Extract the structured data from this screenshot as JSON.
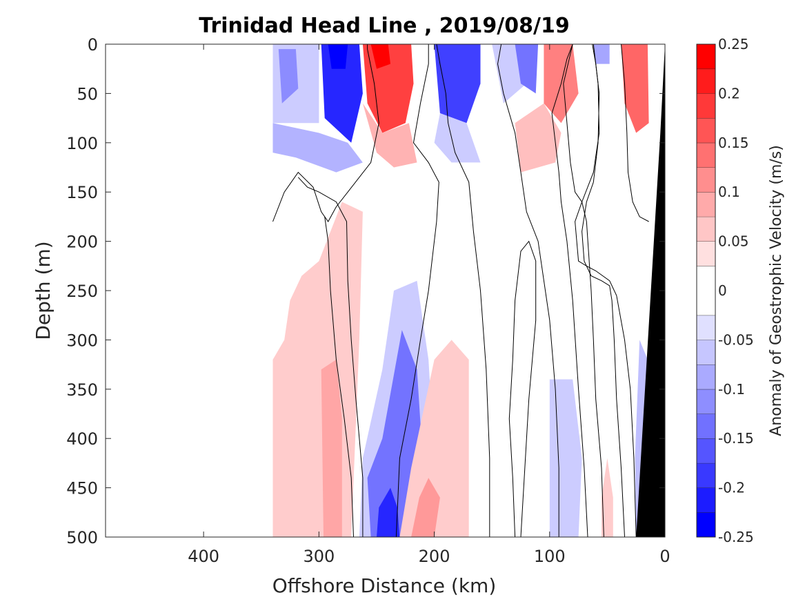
{
  "chart_data": {
    "type": "heatmap",
    "title": "Trinidad Head Line , 2019/08/19",
    "xlabel": "Offshore Distance (km)",
    "ylabel": "Depth (m)",
    "colorbar_label": "Anomaly of Geostrophic Velocity (m/s)",
    "xlim": [
      485,
      0
    ],
    "ylim": [
      0,
      500
    ],
    "x_reversed": true,
    "y_reversed": true,
    "x_ticks": [
      400,
      300,
      200,
      100,
      0
    ],
    "x_tick_labels": [
      "400",
      "300",
      "200",
      "100",
      "0"
    ],
    "y_ticks": [
      0,
      50,
      100,
      150,
      200,
      250,
      300,
      350,
      400,
      450,
      500
    ],
    "y_tick_labels": [
      "0",
      "50",
      "100",
      "150",
      "200",
      "250",
      "300",
      "350",
      "400",
      "450",
      "500"
    ],
    "colorbar_ticks": [
      0.25,
      0.2,
      0.15,
      0.1,
      0.05,
      0,
      -0.05,
      -0.1,
      -0.15,
      -0.2,
      -0.25
    ],
    "colorbar_tick_labels": [
      "0.25",
      "0.2",
      "0.15",
      "0.1",
      "0.05",
      "0",
      "-0.05",
      "-0.1",
      "-0.15",
      "-0.2",
      "-0.25"
    ],
    "colorbar_levels": [
      -0.25,
      -0.225,
      -0.2,
      -0.175,
      -0.15,
      -0.125,
      -0.1,
      -0.075,
      -0.05,
      -0.025,
      0.025,
      0.05,
      0.075,
      0.1,
      0.125,
      0.15,
      0.175,
      0.2,
      0.225,
      0.25
    ],
    "colormap": {
      "negative": "#0000ff",
      "zero": "#ffffff",
      "positive": "#ff0000"
    },
    "bathymetry_color": "#000000",
    "features": [
      {
        "kind": "neg",
        "level": 0.2,
        "poly": [
          [
            340,
            0
          ],
          [
            318,
            0
          ],
          [
            300,
            0
          ],
          [
            300,
            80
          ],
          [
            340,
            80
          ]
        ]
      },
      {
        "kind": "neg",
        "level": 0.45,
        "poly": [
          [
            335,
            5
          ],
          [
            320,
            5
          ],
          [
            318,
            45
          ],
          [
            332,
            60
          ]
        ]
      },
      {
        "kind": "neg",
        "level": 0.85,
        "poly": [
          [
            298,
            0
          ],
          [
            265,
            0
          ],
          [
            262,
            50
          ],
          [
            272,
            100
          ],
          [
            295,
            75
          ]
        ]
      },
      {
        "kind": "neg",
        "level": 0.3,
        "poly": [
          [
            340,
            80
          ],
          [
            300,
            90
          ],
          [
            275,
            100
          ],
          [
            262,
            120
          ],
          [
            285,
            130
          ],
          [
            320,
            115
          ],
          [
            340,
            110
          ]
        ]
      },
      {
        "kind": "neg",
        "level": 1.0,
        "poly": [
          [
            292,
            0
          ],
          [
            275,
            0
          ],
          [
            277,
            25
          ],
          [
            289,
            25
          ]
        ]
      },
      {
        "kind": "pos",
        "level": 0.75,
        "poly": [
          [
            262,
            0
          ],
          [
            220,
            0
          ],
          [
            218,
            40
          ],
          [
            225,
            80
          ],
          [
            245,
            90
          ],
          [
            258,
            60
          ]
        ]
      },
      {
        "kind": "pos",
        "level": 0.3,
        "poly": [
          [
            262,
            60
          ],
          [
            250,
            110
          ],
          [
            235,
            125
          ],
          [
            215,
            120
          ],
          [
            222,
            80
          ],
          [
            245,
            90
          ]
        ]
      },
      {
        "kind": "pos",
        "level": 1.0,
        "poly": [
          [
            255,
            0
          ],
          [
            240,
            0
          ],
          [
            238,
            20
          ],
          [
            250,
            25
          ]
        ]
      },
      {
        "kind": "neg",
        "level": 0.75,
        "poly": [
          [
            200,
            0
          ],
          [
            160,
            0
          ],
          [
            160,
            40
          ],
          [
            172,
            80
          ],
          [
            195,
            70
          ]
        ]
      },
      {
        "kind": "neg",
        "level": 0.2,
        "poly": [
          [
            195,
            70
          ],
          [
            172,
            80
          ],
          [
            160,
            120
          ],
          [
            185,
            120
          ],
          [
            200,
            100
          ]
        ]
      },
      {
        "kind": "neg",
        "level": 0.2,
        "poly": [
          [
            150,
            0
          ],
          [
            120,
            0
          ],
          [
            120,
            40
          ],
          [
            140,
            60
          ]
        ]
      },
      {
        "kind": "neg",
        "level": 0.55,
        "poly": [
          [
            130,
            0
          ],
          [
            110,
            0
          ],
          [
            112,
            50
          ],
          [
            125,
            40
          ]
        ]
      },
      {
        "kind": "pos",
        "level": 0.5,
        "poly": [
          [
            105,
            0
          ],
          [
            80,
            0
          ],
          [
            75,
            50
          ],
          [
            90,
            80
          ],
          [
            105,
            60
          ]
        ]
      },
      {
        "kind": "pos",
        "level": 0.25,
        "poly": [
          [
            130,
            80
          ],
          [
            105,
            60
          ],
          [
            90,
            90
          ],
          [
            95,
            120
          ],
          [
            125,
            130
          ]
        ]
      },
      {
        "kind": "neg",
        "level": 0.35,
        "poly": [
          [
            62,
            0
          ],
          [
            48,
            0
          ],
          [
            48,
            20
          ],
          [
            60,
            20
          ]
        ]
      },
      {
        "kind": "pos",
        "level": 0.6,
        "poly": [
          [
            38,
            0
          ],
          [
            15,
            0
          ],
          [
            14,
            80
          ],
          [
            25,
            90
          ],
          [
            35,
            60
          ]
        ]
      },
      {
        "kind": "pos",
        "level": 0.2,
        "poly": [
          [
            340,
            320
          ],
          [
            330,
            300
          ],
          [
            325,
            260
          ],
          [
            315,
            235
          ],
          [
            300,
            220
          ],
          [
            280,
            160
          ],
          [
            262,
            170
          ],
          [
            265,
            300
          ],
          [
            272,
            500
          ],
          [
            340,
            500
          ]
        ]
      },
      {
        "kind": "pos",
        "level": 0.35,
        "poly": [
          [
            298,
            330
          ],
          [
            285,
            320
          ],
          [
            280,
            380
          ],
          [
            280,
            500
          ],
          [
            296,
            500
          ]
        ]
      },
      {
        "kind": "neg",
        "level": 0.2,
        "poly": [
          [
            235,
            250
          ],
          [
            215,
            240
          ],
          [
            205,
            320
          ],
          [
            200,
            420
          ],
          [
            195,
            500
          ],
          [
            265,
            500
          ],
          [
            262,
            420
          ],
          [
            245,
            330
          ]
        ]
      },
      {
        "kind": "neg",
        "level": 0.55,
        "poly": [
          [
            228,
            290
          ],
          [
            215,
            330
          ],
          [
            210,
            420
          ],
          [
            215,
            500
          ],
          [
            255,
            500
          ],
          [
            258,
            440
          ],
          [
            245,
            400
          ]
        ]
      },
      {
        "kind": "neg",
        "level": 0.85,
        "poly": [
          [
            238,
            450
          ],
          [
            232,
            470
          ],
          [
            230,
            500
          ],
          [
            250,
            500
          ],
          [
            248,
            470
          ]
        ]
      },
      {
        "kind": "pos",
        "level": 0.2,
        "poly": [
          [
            200,
            320
          ],
          [
            185,
            300
          ],
          [
            170,
            320
          ],
          [
            170,
            500
          ],
          [
            230,
            500
          ],
          [
            220,
            430
          ]
        ]
      },
      {
        "kind": "pos",
        "level": 0.4,
        "poly": [
          [
            213,
            460
          ],
          [
            205,
            440
          ],
          [
            195,
            460
          ],
          [
            200,
            500
          ],
          [
            220,
            500
          ]
        ]
      },
      {
        "kind": "neg",
        "level": 0.2,
        "poly": [
          [
            100,
            340
          ],
          [
            80,
            340
          ],
          [
            72,
            420
          ],
          [
            75,
            500
          ],
          [
            100,
            500
          ]
        ]
      },
      {
        "kind": "pos",
        "level": 0.2,
        "poly": [
          [
            50,
            420
          ],
          [
            45,
            460
          ],
          [
            45,
            500
          ],
          [
            55,
            500
          ],
          [
            55,
            460
          ]
        ]
      },
      {
        "kind": "neg",
        "level": 0.25,
        "poly": [
          [
            22,
            300
          ],
          [
            15,
            320
          ],
          [
            17,
            420
          ],
          [
            20,
            500
          ],
          [
            25,
            500
          ],
          [
            26,
            420
          ]
        ]
      }
    ],
    "zero_contours": [
      [
        [
          340,
          180
        ],
        [
          330,
          150
        ],
        [
          318,
          130
        ],
        [
          305,
          145
        ],
        [
          298,
          170
        ],
        [
          292,
          180
        ],
        [
          285,
          165
        ],
        [
          275,
          150
        ],
        [
          265,
          135
        ],
        [
          255,
          120
        ],
        [
          248,
          80
        ],
        [
          252,
          40
        ],
        [
          258,
          5
        ],
        [
          258,
          0
        ]
      ],
      [
        [
          262,
          500
        ],
        [
          262,
          440
        ],
        [
          268,
          360
        ],
        [
          272,
          300
        ],
        [
          275,
          240
        ],
        [
          276,
          180
        ],
        [
          285,
          160
        ],
        [
          300,
          150
        ],
        [
          310,
          145
        ],
        [
          318,
          135
        ]
      ],
      [
        [
          270,
          500
        ],
        [
          272,
          440
        ],
        [
          278,
          380
        ],
        [
          285,
          320
        ],
        [
          290,
          250
        ],
        [
          292,
          200
        ],
        [
          295,
          175
        ]
      ],
      [
        [
          233,
          500
        ],
        [
          230,
          420
        ],
        [
          220,
          360
        ],
        [
          212,
          300
        ],
        [
          205,
          250
        ],
        [
          198,
          180
        ],
        [
          196,
          140
        ],
        [
          205,
          120
        ],
        [
          218,
          100
        ],
        [
          212,
          60
        ],
        [
          205,
          20
        ],
        [
          205,
          0
        ]
      ],
      [
        [
          152,
          500
        ],
        [
          152,
          420
        ],
        [
          155,
          330
        ],
        [
          160,
          250
        ],
        [
          166,
          190
        ],
        [
          170,
          140
        ],
        [
          182,
          110
        ],
        [
          188,
          80
        ],
        [
          190,
          50
        ],
        [
          195,
          20
        ],
        [
          198,
          0
        ]
      ],
      [
        [
          130,
          500
        ],
        [
          132,
          440
        ],
        [
          135,
          380
        ],
        [
          132,
          320
        ],
        [
          130,
          260
        ],
        [
          125,
          210
        ],
        [
          118,
          200
        ],
        [
          112,
          220
        ],
        [
          112,
          280
        ],
        [
          118,
          360
        ],
        [
          122,
          440
        ],
        [
          125,
          500
        ]
      ],
      [
        [
          92,
          500
        ],
        [
          92,
          430
        ],
        [
          95,
          350
        ],
        [
          100,
          280
        ],
        [
          110,
          200
        ],
        [
          120,
          170
        ],
        [
          125,
          130
        ],
        [
          130,
          90
        ],
        [
          140,
          50
        ],
        [
          145,
          20
        ],
        [
          142,
          0
        ]
      ],
      [
        [
          67,
          500
        ],
        [
          70,
          430
        ],
        [
          75,
          350
        ],
        [
          80,
          260
        ],
        [
          85,
          200
        ],
        [
          90,
          160
        ],
        [
          92,
          130
        ],
        [
          98,
          70
        ],
        [
          90,
          40
        ],
        [
          85,
          15
        ],
        [
          80,
          0
        ]
      ],
      [
        [
          53,
          500
        ],
        [
          55,
          430
        ],
        [
          60,
          360
        ],
        [
          62,
          300
        ],
        [
          64,
          250
        ],
        [
          68,
          180
        ],
        [
          72,
          160
        ],
        [
          78,
          150
        ],
        [
          82,
          120
        ],
        [
          85,
          80
        ],
        [
          88,
          40
        ],
        [
          80,
          0
        ]
      ],
      [
        [
          35,
          500
        ],
        [
          38,
          430
        ],
        [
          42,
          360
        ],
        [
          44,
          300
        ],
        [
          46,
          260
        ],
        [
          48,
          245
        ],
        [
          55,
          240
        ],
        [
          64,
          235
        ],
        [
          70,
          220
        ],
        [
          72,
          190
        ],
        [
          68,
          160
        ],
        [
          62,
          140
        ],
        [
          58,
          100
        ],
        [
          57,
          50
        ],
        [
          60,
          20
        ],
        [
          63,
          0
        ]
      ],
      [
        [
          25,
          500
        ],
        [
          27,
          420
        ],
        [
          30,
          350
        ],
        [
          35,
          300
        ],
        [
          42,
          255
        ],
        [
          48,
          240
        ],
        [
          60,
          230
        ],
        [
          68,
          225
        ],
        [
          75,
          220
        ],
        [
          78,
          180
        ],
        [
          72,
          160
        ],
        [
          62,
          130
        ],
        [
          57,
          90
        ],
        [
          58,
          40
        ],
        [
          62,
          0
        ]
      ],
      [
        [
          14,
          180
        ],
        [
          22,
          175
        ],
        [
          28,
          160
        ],
        [
          32,
          130
        ],
        [
          33,
          90
        ],
        [
          35,
          40
        ],
        [
          38,
          0
        ]
      ]
    ],
    "bathymetry": [
      [
        0,
        0
      ],
      [
        0,
        500
      ],
      [
        25,
        500
      ],
      [
        4,
        90
      ],
      [
        0,
        0
      ]
    ]
  }
}
